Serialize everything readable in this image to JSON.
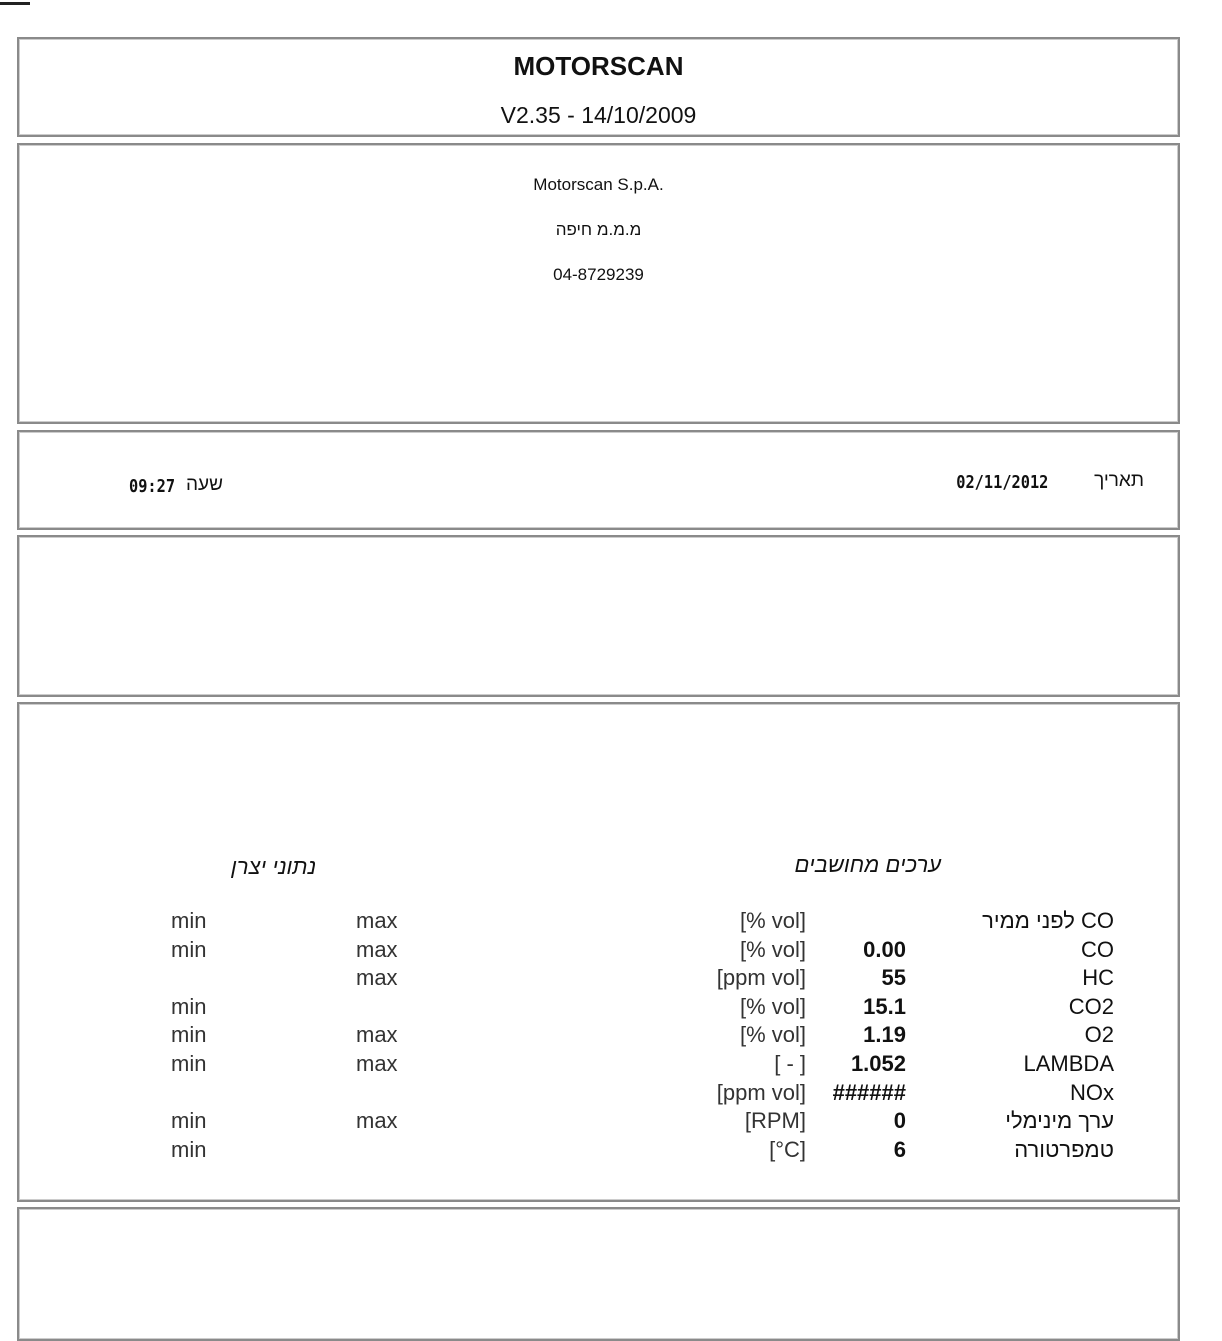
{
  "header": {
    "title": "MOTORSCAN",
    "version": "V2.35 - 14/10/2009"
  },
  "company": {
    "name": "Motorscan S.p.A.",
    "branch": "מ.מ.מ חיפה",
    "phone": "04-8729239"
  },
  "datetime": {
    "date_label": "תאריך",
    "date": "02/11/2012",
    "time_label": "שעה",
    "time": "09:27"
  },
  "results": {
    "calculated_header": "ערכים מחושבים",
    "manufacturer_header": "נתוני יצרן",
    "rows": [
      {
        "label": "CO לפני ממיר",
        "value": "",
        "unit": "[% vol]",
        "min": "min",
        "max": "max"
      },
      {
        "label": "CO",
        "value": "0.00",
        "unit": "[% vol]",
        "min": "min",
        "max": "max"
      },
      {
        "label": "HC",
        "value": "55",
        "unit": "[ppm vol]",
        "min": "",
        "max": "max"
      },
      {
        "label": "CO2",
        "value": "15.1",
        "unit": "[% vol]",
        "min": "min",
        "max": ""
      },
      {
        "label": "O2",
        "value": "1.19",
        "unit": "[% vol]",
        "min": "min",
        "max": "max"
      },
      {
        "label": "LAMBDA",
        "value": "1.052",
        "unit": "[ - ]",
        "min": "min",
        "max": "max"
      },
      {
        "label": "NOx",
        "value": "######",
        "unit": "[ppm vol]",
        "min": "",
        "max": ""
      },
      {
        "label": "ערך מינימלי",
        "value": "0",
        "unit": "[RPM]",
        "min": "min",
        "max": "max"
      },
      {
        "label": "טמפרטורה",
        "value": "6",
        "unit": "[°C]",
        "min": "min",
        "max": ""
      }
    ]
  }
}
